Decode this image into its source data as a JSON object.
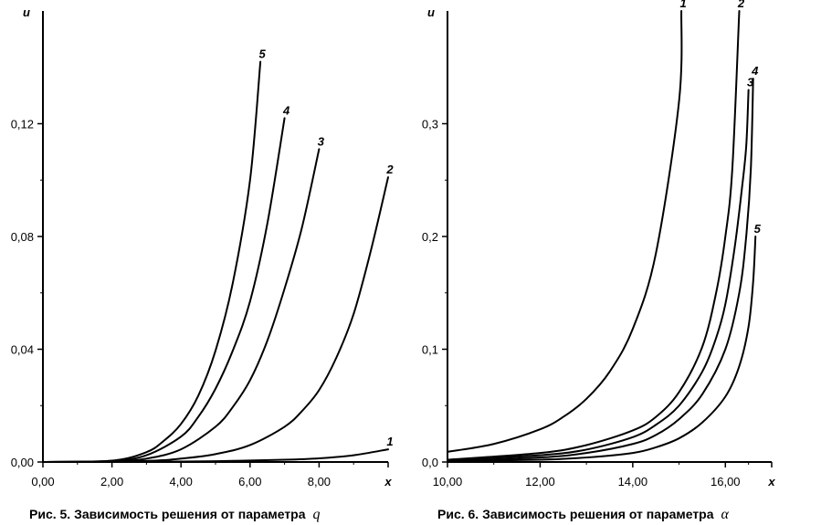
{
  "chart_data": [
    {
      "type": "line",
      "caption": "Рис. 5. Зависимость решения от параметра",
      "caption_param": "q",
      "xlabel": "x",
      "ylabel": "u",
      "xlim": [
        0,
        10
      ],
      "ylim": [
        0,
        0.16
      ],
      "x_ticks": [
        0,
        2,
        4,
        6,
        8,
        10
      ],
      "x_tick_labels": [
        "0,00",
        "2,00",
        "4,00",
        "6,00",
        "8,00",
        ""
      ],
      "y_ticks": [
        0,
        0.04,
        0.08,
        0.12
      ],
      "y_tick_labels": [
        "0,00",
        "0,04",
        "0,08",
        "0,12"
      ],
      "series": [
        {
          "name": "1",
          "values": [
            [
              0,
              0
            ],
            [
              3,
              0.0001
            ],
            [
              5,
              0.0003
            ],
            [
              7,
              0.0008
            ],
            [
              8,
              0.0013
            ],
            [
              9,
              0.0024
            ],
            [
              10,
              0.0045
            ]
          ]
        },
        {
          "name": "2",
          "values": [
            [
              0,
              0
            ],
            [
              3,
              0.0004
            ],
            [
              4,
              0.0012
            ],
            [
              5,
              0.0028
            ],
            [
              6,
              0.006
            ],
            [
              7,
              0.0125
            ],
            [
              7.5,
              0.018
            ],
            [
              8,
              0.0255
            ],
            [
              8.5,
              0.037
            ],
            [
              9,
              0.0525
            ],
            [
              9.5,
              0.075
            ],
            [
              10,
              0.101
            ]
          ]
        },
        {
          "name": "3",
          "values": [
            [
              0,
              0
            ],
            [
              2,
              0.0002
            ],
            [
              3,
              0.0012
            ],
            [
              4,
              0.0045
            ],
            [
              5,
              0.0125
            ],
            [
              5.5,
              0.0195
            ],
            [
              6,
              0.029
            ],
            [
              6.5,
              0.043
            ],
            [
              7,
              0.0615
            ],
            [
              7.5,
              0.083
            ],
            [
              8,
              0.111
            ]
          ]
        },
        {
          "name": "4",
          "values": [
            [
              0,
              0
            ],
            [
              2,
              0.0004
            ],
            [
              3,
              0.0024
            ],
            [
              4,
              0.009
            ],
            [
              4.5,
              0.016
            ],
            [
              5,
              0.026
            ],
            [
              5.5,
              0.0395
            ],
            [
              6,
              0.057
            ],
            [
              6.5,
              0.0845
            ],
            [
              7,
              0.122
            ]
          ]
        },
        {
          "name": "5",
          "values": [
            [
              0,
              0
            ],
            [
              2,
              0.0005
            ],
            [
              3,
              0.0035
            ],
            [
              3.5,
              0.0075
            ],
            [
              4,
              0.0135
            ],
            [
              4.5,
              0.0235
            ],
            [
              5,
              0.0395
            ],
            [
              5.5,
              0.0635
            ],
            [
              6,
              0.1
            ],
            [
              6.3,
              0.142
            ]
          ]
        }
      ]
    },
    {
      "type": "line",
      "caption": "Рис. 6. Зависимость решения от  параметра",
      "caption_param": "α",
      "xlabel": "x",
      "ylabel": "u",
      "xlim": [
        10,
        17
      ],
      "ylim": [
        0,
        0.4
      ],
      "x_ticks": [
        10,
        12,
        14,
        16,
        17
      ],
      "x_tick_labels": [
        "10,00",
        "12,00",
        "14,00",
        "16,00",
        ""
      ],
      "y_ticks": [
        0,
        0.1,
        0.2,
        0.3
      ],
      "y_tick_labels": [
        "0,0",
        "0,1",
        "0,2",
        "0,3"
      ],
      "series": [
        {
          "name": "1",
          "values": [
            [
              10,
              0.009
            ],
            [
              11,
              0.016
            ],
            [
              12,
              0.029
            ],
            [
              12.5,
              0.04
            ],
            [
              13,
              0.056
            ],
            [
              13.5,
              0.08
            ],
            [
              14,
              0.118
            ],
            [
              14.5,
              0.185
            ],
            [
              15,
              0.32
            ],
            [
              15.05,
              0.4
            ]
          ]
        },
        {
          "name": "2",
          "values": [
            [
              10,
              0.002
            ],
            [
              12,
              0.008
            ],
            [
              13,
              0.015
            ],
            [
              14,
              0.028
            ],
            [
              14.5,
              0.04
            ],
            [
              15,
              0.062
            ],
            [
              15.5,
              0.102
            ],
            [
              15.8,
              0.15
            ],
            [
              16,
              0.2
            ],
            [
              16.15,
              0.26
            ],
            [
              16.3,
              0.4
            ]
          ]
        },
        {
          "name": "3",
          "values": [
            [
              10,
              0.002
            ],
            [
              12,
              0.006
            ],
            [
              13,
              0.011
            ],
            [
              14,
              0.022
            ],
            [
              14.5,
              0.033
            ],
            [
              15,
              0.05
            ],
            [
              15.5,
              0.08
            ],
            [
              15.8,
              0.11
            ],
            [
              16,
              0.14
            ],
            [
              16.2,
              0.19
            ],
            [
              16.35,
              0.24
            ],
            [
              16.45,
              0.28
            ],
            [
              16.5,
              0.33
            ]
          ]
        },
        {
          "name": "4",
          "values": [
            [
              10,
              0.001
            ],
            [
              12,
              0.004
            ],
            [
              13,
              0.008
            ],
            [
              14,
              0.016
            ],
            [
              14.5,
              0.024
            ],
            [
              15,
              0.038
            ],
            [
              15.5,
              0.06
            ],
            [
              16,
              0.1
            ],
            [
              16.3,
              0.15
            ],
            [
              16.45,
              0.2
            ],
            [
              16.55,
              0.26
            ],
            [
              16.6,
              0.34
            ]
          ]
        },
        {
          "name": "5",
          "values": [
            [
              10,
              0.001
            ],
            [
              12,
              0.002
            ],
            [
              13,
              0.004
            ],
            [
              14,
              0.008
            ],
            [
              14.5,
              0.013
            ],
            [
              15,
              0.021
            ],
            [
              15.5,
              0.035
            ],
            [
              16,
              0.058
            ],
            [
              16.3,
              0.085
            ],
            [
              16.5,
              0.12
            ],
            [
              16.6,
              0.16
            ],
            [
              16.65,
              0.2
            ]
          ]
        }
      ]
    }
  ]
}
